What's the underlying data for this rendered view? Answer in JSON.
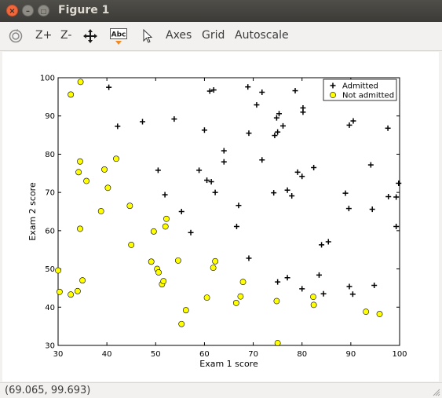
{
  "window": {
    "title": "Figure 1"
  },
  "toolbar": {
    "items": [
      {
        "name": "rotate-icon",
        "label": ""
      },
      {
        "name": "zoom-in-button",
        "label": "Z+"
      },
      {
        "name": "zoom-out-button",
        "label": "Z-"
      },
      {
        "name": "pan-icon",
        "label": ""
      },
      {
        "name": "text-icon",
        "label": ""
      },
      {
        "name": "select-icon",
        "label": ""
      },
      {
        "name": "axes-button",
        "label": "Axes"
      },
      {
        "name": "grid-button",
        "label": "Grid"
      },
      {
        "name": "autoscale-button",
        "label": "Autoscale"
      }
    ],
    "text_icon_label": "Abc"
  },
  "status": {
    "coords": "(69.065, 99.693)"
  },
  "chart_data": {
    "type": "scatter",
    "title": "",
    "xlabel": "Exam 1 score",
    "ylabel": "Exam 2 score",
    "xlim": [
      30,
      100
    ],
    "ylim": [
      30,
      100
    ],
    "xticks": [
      30,
      40,
      50,
      60,
      70,
      80,
      90,
      100
    ],
    "yticks": [
      30,
      40,
      50,
      60,
      70,
      80,
      90,
      100
    ],
    "grid": false,
    "legend_position": "top-right",
    "series": [
      {
        "name": "Admitted",
        "marker": "plus",
        "color": "#000000",
        "points": [
          [
            40.4,
            97.5
          ],
          [
            42.2,
            87.3
          ],
          [
            47.3,
            88.5
          ],
          [
            53.8,
            89.2
          ],
          [
            61.1,
            96.5
          ],
          [
            61.9,
            96.8
          ],
          [
            68.9,
            97.6
          ],
          [
            60.0,
            86.3
          ],
          [
            69.1,
            85.5
          ],
          [
            71.8,
            96.2
          ],
          [
            70.7,
            92.9
          ],
          [
            74.8,
            89.5
          ],
          [
            75.3,
            90.6
          ],
          [
            76.1,
            87.4
          ],
          [
            75.0,
            85.8
          ],
          [
            74.4,
            84.9
          ],
          [
            78.6,
            96.6
          ],
          [
            80.2,
            92.1
          ],
          [
            80.2,
            91.0
          ],
          [
            89.7,
            87.6
          ],
          [
            90.5,
            88.7
          ],
          [
            97.6,
            86.8
          ],
          [
            64.0,
            80.9
          ],
          [
            64.0,
            78.0
          ],
          [
            71.8,
            78.5
          ],
          [
            50.5,
            75.8
          ],
          [
            58.9,
            75.8
          ],
          [
            60.5,
            73.2
          ],
          [
            61.4,
            72.8
          ],
          [
            62.2,
            70.0
          ],
          [
            51.9,
            69.4
          ],
          [
            74.2,
            69.9
          ],
          [
            77.0,
            70.6
          ],
          [
            77.9,
            69.1
          ],
          [
            79.1,
            75.3
          ],
          [
            80.0,
            74.2
          ],
          [
            82.4,
            76.5
          ],
          [
            88.9,
            69.8
          ],
          [
            94.1,
            77.2
          ],
          [
            97.7,
            68.9
          ],
          [
            99.3,
            68.8
          ],
          [
            99.8,
            72.4
          ],
          [
            55.3,
            65.0
          ],
          [
            57.2,
            59.5
          ],
          [
            66.6,
            61.1
          ],
          [
            67.0,
            66.6
          ],
          [
            89.6,
            65.8
          ],
          [
            94.4,
            65.6
          ],
          [
            99.3,
            61.1
          ],
          [
            69.1,
            52.8
          ],
          [
            84.0,
            56.3
          ],
          [
            85.4,
            57.1
          ],
          [
            75.0,
            46.6
          ],
          [
            77.0,
            47.7
          ],
          [
            80.0,
            44.8
          ],
          [
            83.5,
            48.4
          ],
          [
            84.4,
            43.5
          ],
          [
            89.7,
            45.4
          ],
          [
            90.4,
            43.4
          ],
          [
            94.8,
            45.7
          ]
        ]
      },
      {
        "name": "Not admitted",
        "marker": "circle",
        "color": "#ffff00",
        "points": [
          [
            34.6,
            98.9
          ],
          [
            32.6,
            95.6
          ],
          [
            34.2,
            75.3
          ],
          [
            34.5,
            78.1
          ],
          [
            35.8,
            73.0
          ],
          [
            38.8,
            65.1
          ],
          [
            39.5,
            76.0
          ],
          [
            40.2,
            71.2
          ],
          [
            41.9,
            78.8
          ],
          [
            44.7,
            66.5
          ],
          [
            45.0,
            56.3
          ],
          [
            34.5,
            60.5
          ],
          [
            30.0,
            49.6
          ],
          [
            30.3,
            44.0
          ],
          [
            32.6,
            43.3
          ],
          [
            34.0,
            44.2
          ],
          [
            35.0,
            47.0
          ],
          [
            49.1,
            51.9
          ],
          [
            49.6,
            59.8
          ],
          [
            50.3,
            50.0
          ],
          [
            50.6,
            49.1
          ],
          [
            51.3,
            46.0
          ],
          [
            51.6,
            46.8
          ],
          [
            52.0,
            61.1
          ],
          [
            52.2,
            63.1
          ],
          [
            54.6,
            52.2
          ],
          [
            55.3,
            35.6
          ],
          [
            56.2,
            39.2
          ],
          [
            60.5,
            42.5
          ],
          [
            61.8,
            50.3
          ],
          [
            62.2,
            52.0
          ],
          [
            66.5,
            41.1
          ],
          [
            67.4,
            42.8
          ],
          [
            67.9,
            46.6
          ],
          [
            74.8,
            41.6
          ],
          [
            75.0,
            30.6
          ],
          [
            82.3,
            42.7
          ],
          [
            82.4,
            40.6
          ],
          [
            93.1,
            38.8
          ],
          [
            95.9,
            38.2
          ]
        ]
      }
    ]
  }
}
